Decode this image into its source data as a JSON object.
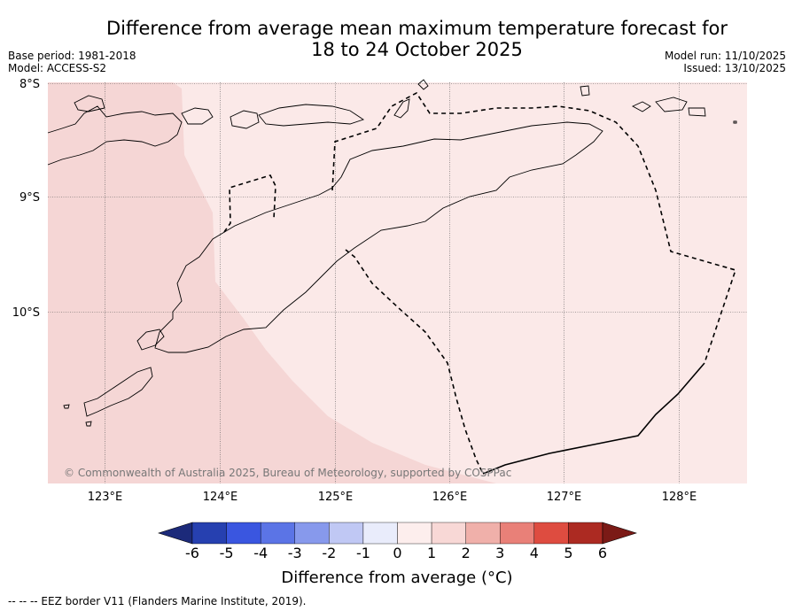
{
  "title_line1": "Difference from average mean maximum temperature forecast for",
  "title_line2": "18 to 24 October 2025",
  "base_period": "Base period: 1981-2018",
  "model": "Model: ACCESS-S2",
  "model_run": "Model run: 11/10/2025",
  "issued": "Issued: 13/10/2025",
  "lat_labels": [
    "8°S",
    "9°S",
    "10°S"
  ],
  "lon_labels": [
    "123°E",
    "124°E",
    "125°E",
    "126°E",
    "127°E",
    "128°E"
  ],
  "copyright": "© Commonwealth of Australia 2025, Bureau of Meteorology, supported by COSPPac",
  "colorbar": {
    "ticks": [
      "-6",
      "-5",
      "-4",
      "-3",
      "-2",
      "-1",
      "0",
      "1",
      "2",
      "3",
      "4",
      "5",
      "6"
    ],
    "colors": [
      "#1c2a7a",
      "#2640b0",
      "#3a56e0",
      "#5b74e6",
      "#8799ec",
      "#c0c8f4",
      "#e9ecfb",
      "#fdeeed",
      "#f8d8d6",
      "#f0b0aa",
      "#e98078",
      "#de4c40",
      "#ac2a22",
      "#7b1a16"
    ],
    "label": "Difference from average (°C)"
  },
  "map_fills": {
    "land_background": "#f5d6d5",
    "sea_light": "#fbe9e8"
  },
  "footer": "--  --  -- EEZ border V11 (Flanders Marine Institute, 2019)."
}
